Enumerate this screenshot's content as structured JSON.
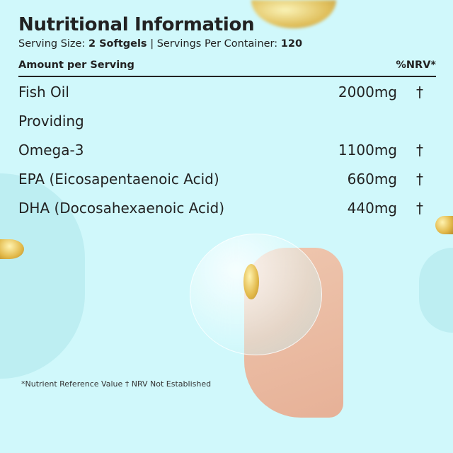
{
  "title": "Nutritional Information",
  "serving": {
    "size_label": "Serving Size:",
    "size_value": "2 Softgels",
    "separator": "|",
    "per_container_label": "Servings Per Container:",
    "per_container_value": "120"
  },
  "table": {
    "header_left": "Amount per Serving",
    "header_right": "%NRV*",
    "rows": [
      {
        "name": "Fish Oil",
        "amount": "2000mg",
        "nrv": "†"
      },
      {
        "name": "Providing",
        "amount": "",
        "nrv": ""
      },
      {
        "name": "Omega-3",
        "amount": "1100mg",
        "nrv": "†"
      },
      {
        "name": "EPA (Eicosapentaenoic Acid)",
        "amount": "660mg",
        "nrv": "†"
      },
      {
        "name": "DHA (Docosahexaenoic Acid)",
        "amount": "440mg",
        "nrv": "†"
      }
    ]
  },
  "footnote": "*Nutrient Reference Value † NRV Not Established",
  "colors": {
    "background": "#d0f8fb",
    "text": "#222222",
    "accent_circle": "#bdeef2"
  }
}
